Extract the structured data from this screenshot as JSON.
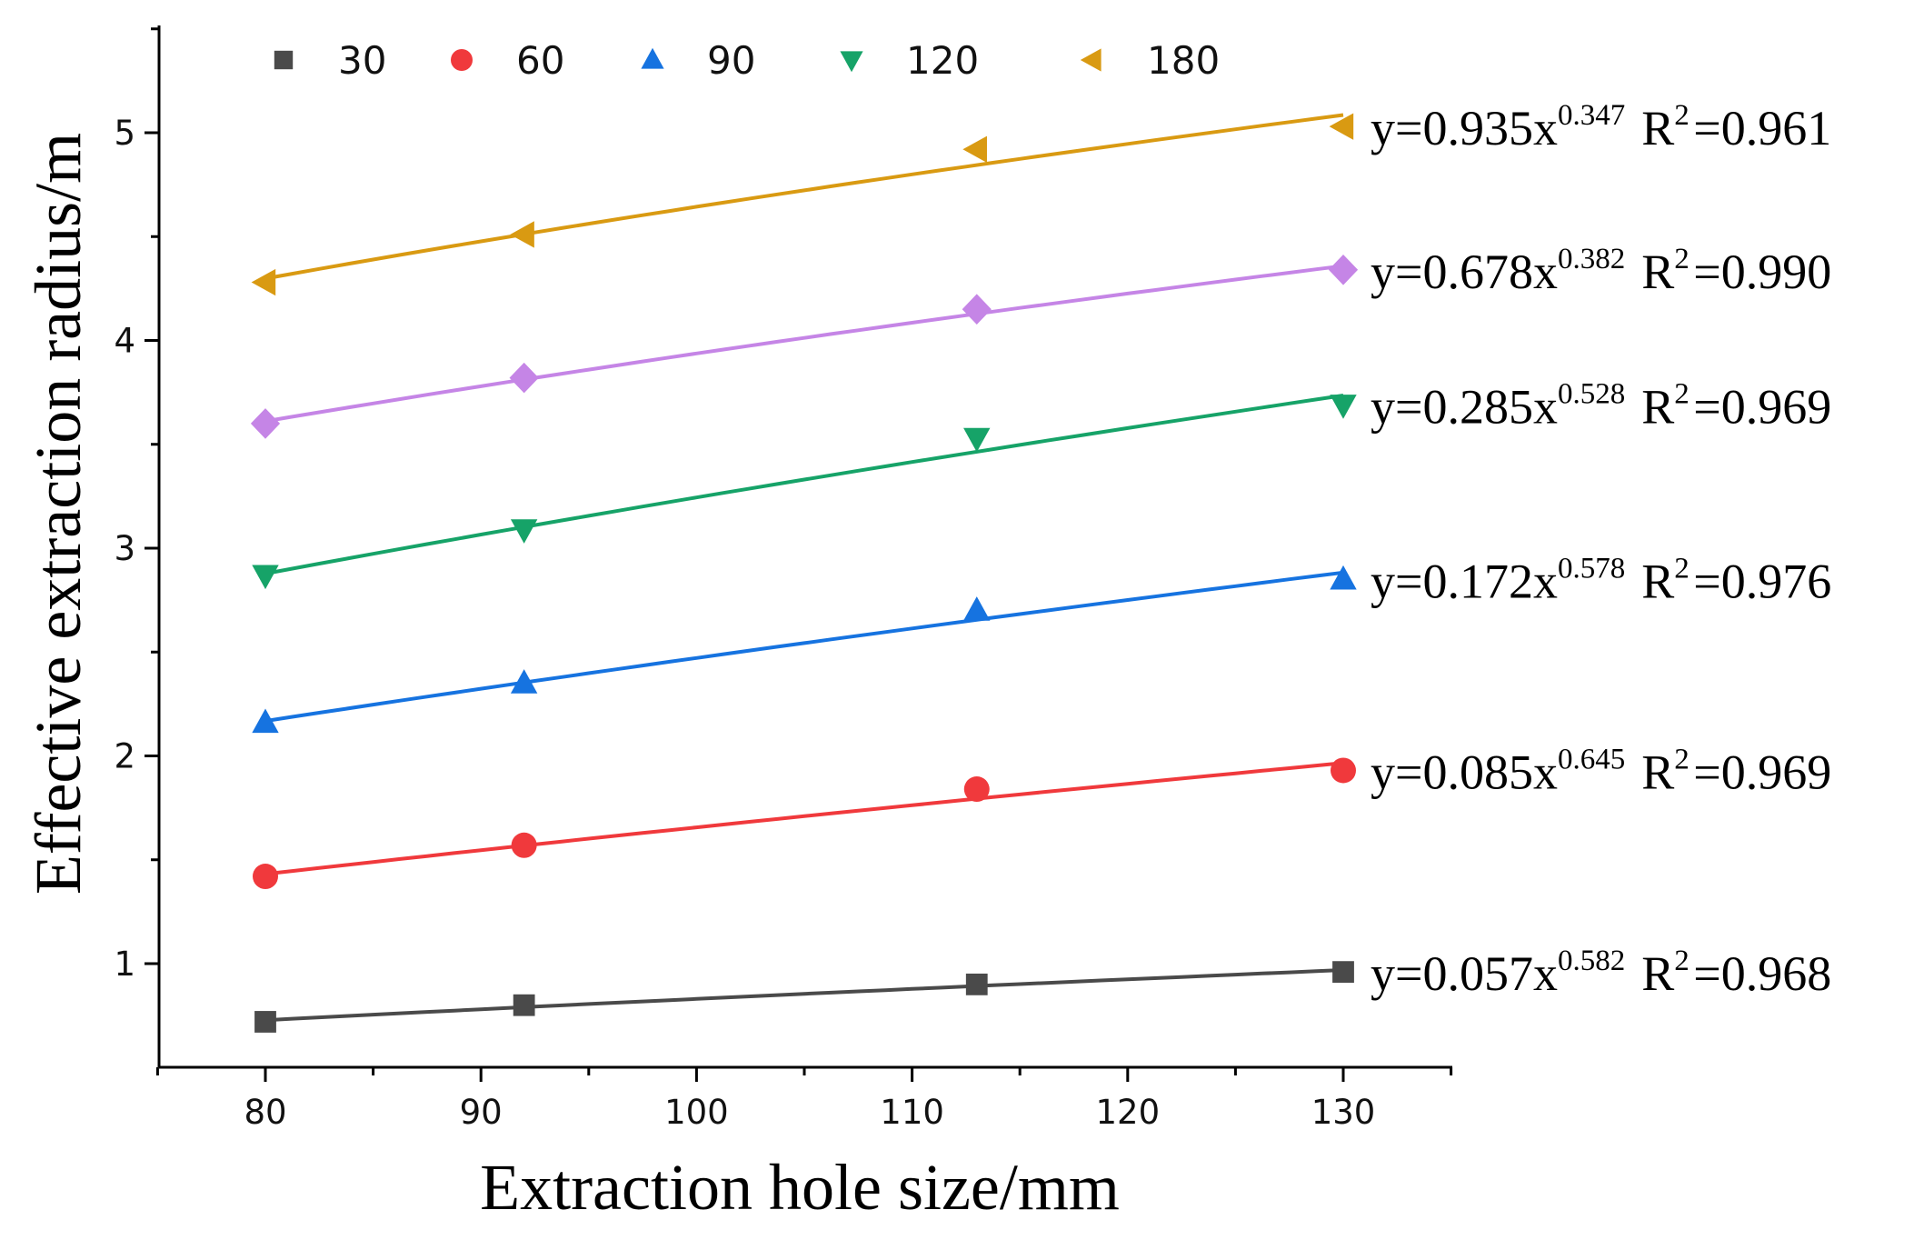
{
  "chart_data": {
    "type": "scatter",
    "title": "",
    "xlabel": "Extraction hole size/mm",
    "ylabel": "Effective extraction radius/m",
    "xlim": [
      75,
      135
    ],
    "ylim": [
      0.5,
      5.5
    ],
    "xticks": [
      80,
      90,
      100,
      110,
      120,
      130
    ],
    "yticks": [
      1,
      2,
      3,
      4,
      5
    ],
    "grid": false,
    "legend_position": "top",
    "series": [
      {
        "name": "30",
        "marker": "square",
        "color": "#4a4a4a",
        "x": [
          80,
          92,
          113,
          130
        ],
        "y": [
          0.72,
          0.8,
          0.9,
          0.96
        ],
        "equation": {
          "prefix": "y=0.057x",
          "exponent": "0.582",
          "r2_label": "R",
          "r2_exp": "2",
          "r2_value": "=0.968"
        }
      },
      {
        "name": "60",
        "marker": "circle",
        "color": "#f0393c",
        "x": [
          80,
          92,
          113,
          130
        ],
        "y": [
          1.42,
          1.57,
          1.84,
          1.93
        ],
        "equation": {
          "prefix": "y=0.085x",
          "exponent": "0.645",
          "r2_label": "R",
          "r2_exp": "2",
          "r2_value": "=0.969"
        }
      },
      {
        "name": "90",
        "marker": "triangle-up",
        "color": "#1673e0",
        "x": [
          80,
          92,
          113,
          130
        ],
        "y": [
          2.16,
          2.35,
          2.7,
          2.85
        ],
        "equation": {
          "prefix": "y=0.172x",
          "exponent": "0.578",
          "r2_label": "R",
          "r2_exp": "2",
          "r2_value": "=0.976"
        }
      },
      {
        "name": "120",
        "marker": "triangle-down",
        "color": "#16a368",
        "x": [
          80,
          92,
          113,
          130
        ],
        "y": [
          2.87,
          3.09,
          3.53,
          3.69
        ],
        "equation": {
          "prefix": "y=0.285x",
          "exponent": "0.528",
          "r2_label": "R",
          "r2_exp": "2",
          "r2_value": "=0.969"
        }
      },
      {
        "name": "",
        "marker": "diamond",
        "color": "#c585e6",
        "x": [
          80,
          92,
          113,
          130
        ],
        "y": [
          3.6,
          3.82,
          4.15,
          4.34
        ],
        "equation": {
          "prefix": "y=0.678x",
          "exponent": "0.382",
          "r2_label": "R",
          "r2_exp": "2",
          "r2_value": "=0.990"
        }
      },
      {
        "name": "180",
        "marker": "triangle-left",
        "color": "#d99a12",
        "x": [
          80,
          92,
          113,
          130
        ],
        "y": [
          4.28,
          4.51,
          4.92,
          5.03
        ],
        "equation": {
          "prefix": "y=0.935x",
          "exponent": "0.347",
          "r2_label": "R",
          "r2_exp": "2",
          "r2_value": "=0.961"
        }
      }
    ]
  }
}
